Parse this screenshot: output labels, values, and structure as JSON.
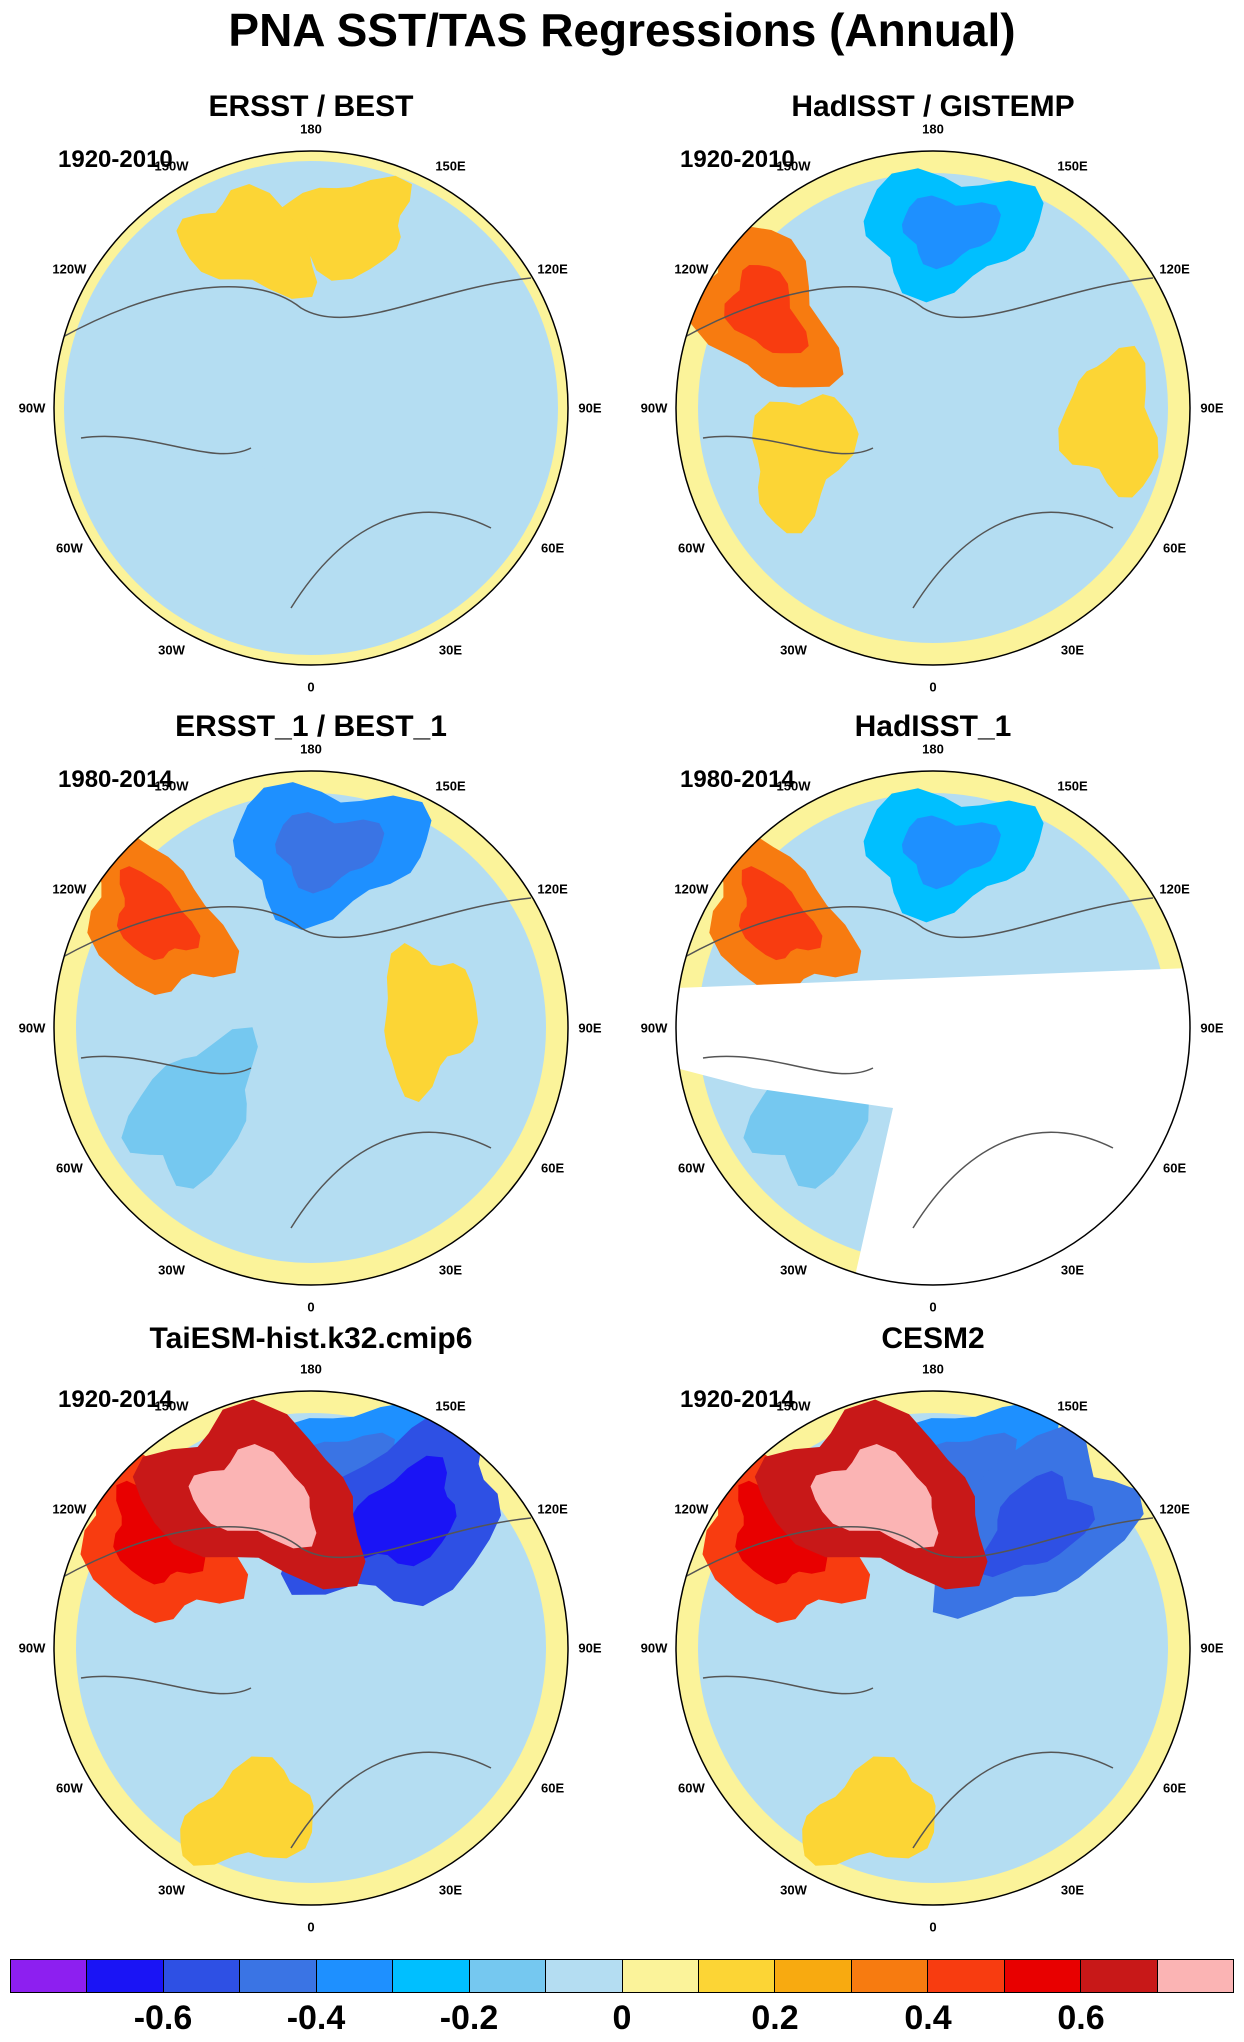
{
  "title": "PNA SST/TAS Regressions (Annual)",
  "chart_data": {
    "type": "heatmap",
    "projection": "north polar stereographic",
    "panels": [
      {
        "title": "ERSST / BEST",
        "period": "1920-2010",
        "features": [
          {
            "level": 0.1,
            "lon": 170,
            "r": 0.72
          },
          {
            "level": 0.1,
            "lon": -160,
            "r": 0.68
          },
          {
            "level": -0.1,
            "lon": -45,
            "r": 0.55
          }
        ]
      },
      {
        "title": "HadISST / GISTEMP",
        "period": "1920-2010",
        "features": [
          {
            "level": -0.3,
            "lon": 175,
            "r": 0.7
          },
          {
            "level": 0.3,
            "lon": -120,
            "r": 0.75
          },
          {
            "level": 0.1,
            "lon": 85,
            "r": 0.7
          },
          {
            "level": 0.1,
            "lon": -70,
            "r": 0.55
          }
        ]
      },
      {
        "title": "ERSST_1 / BEST_1",
        "period": "1980-2014",
        "features": [
          {
            "level": -0.4,
            "lon": 175,
            "r": 0.7
          },
          {
            "level": 0.3,
            "lon": -125,
            "r": 0.75
          },
          {
            "level": 0.1,
            "lon": 95,
            "r": 0.45
          },
          {
            "level": -0.2,
            "lon": -55,
            "r": 0.55
          }
        ]
      },
      {
        "title": "HadISST_1",
        "period": "1980-2014",
        "features": [
          {
            "level": -0.3,
            "lon": 175,
            "r": 0.7
          },
          {
            "level": 0.3,
            "lon": -125,
            "r": 0.75
          },
          {
            "level": -0.2,
            "lon": -55,
            "r": 0.55
          }
        ]
      },
      {
        "title": "TaiESM-hist.k32.cmip6",
        "period": "1920-2014",
        "features": [
          {
            "level": -0.4,
            "lon": 170,
            "r": 0.7
          },
          {
            "level": -0.6,
            "lon": 145,
            "r": 0.62
          },
          {
            "level": 0.4,
            "lon": -125,
            "r": 0.75
          },
          {
            "level": 0.6,
            "lon": -160,
            "r": 0.62
          },
          {
            "level": 0.1,
            "lon": -20,
            "r": 0.7
          }
        ]
      },
      {
        "title": "CESM2",
        "period": "1920-2014",
        "features": [
          {
            "level": -0.4,
            "lon": 170,
            "r": 0.7
          },
          {
            "level": -0.5,
            "lon": 140,
            "r": 0.62
          },
          {
            "level": 0.4,
            "lon": -125,
            "r": 0.75
          },
          {
            "level": 0.6,
            "lon": -160,
            "r": 0.62
          },
          {
            "level": 0.1,
            "lon": -20,
            "r": 0.7
          }
        ]
      }
    ],
    "longitude_labels": [
      "180",
      "150E",
      "120E",
      "90E",
      "60E",
      "30E",
      "0",
      "30W",
      "60W",
      "90W",
      "120W",
      "150W"
    ],
    "colorbar": {
      "colors": [
        "#8d1ff0",
        "#1a14f5",
        "#2e50e4",
        "#3a74e4",
        "#1e90ff",
        "#00bfff",
        "#75c8f0",
        "#b4ddf2",
        "#fbf39a",
        "#fcd535",
        "#f8aa10",
        "#f77b10",
        "#f83c10",
        "#e80000",
        "#c81818",
        "#fbb4b4"
      ],
      "tick_labels": [
        "-0.6",
        "-0.4",
        "-0.2",
        "0",
        "0.2",
        "0.4",
        "0.6"
      ],
      "range": [
        -0.8,
        0.8
      ],
      "step": 0.1
    }
  }
}
